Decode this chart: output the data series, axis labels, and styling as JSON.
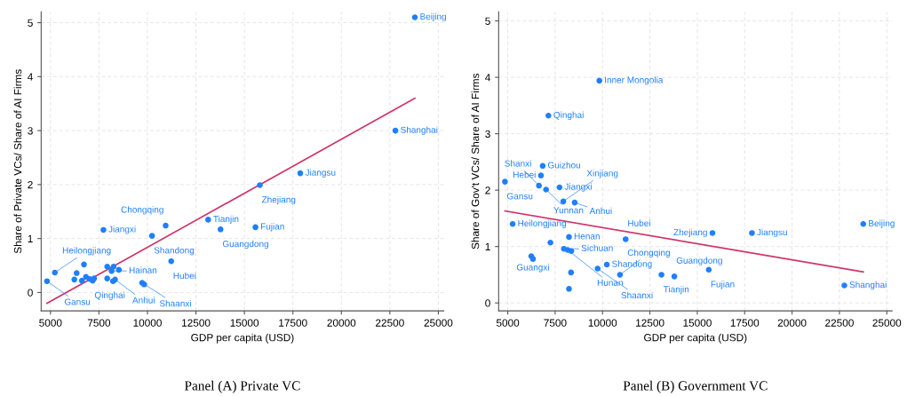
{
  "chart_data": [
    {
      "type": "scatter",
      "title": "Panel (A) Private VC",
      "xlabel": "GDP per capita (USD)",
      "ylabel": "Share of Private VCs/ Share of AI Firms",
      "series": [
        {
          "marker": "circle",
          "color": "#1f7fff",
          "x": [
            4820,
            5225,
            6230,
            6350,
            6725,
            6620,
            6830,
            7025,
            7175,
            7250,
            7730,
            7925,
            7925,
            8150,
            8255,
            8225,
            8330,
            8525,
            9725,
            9830,
            10235,
            10940,
            11225,
            13130,
            13770,
            15570,
            15795,
            17880,
            22785,
            23790
          ],
          "values": [
            0.21,
            0.37,
            0.24,
            0.36,
            0.52,
            0.22,
            0.29,
            0.25,
            0.22,
            0.26,
            1.16,
            0.48,
            0.26,
            0.4,
            0.48,
            0.21,
            0.24,
            0.42,
            0.18,
            0.15,
            1.05,
            1.24,
            0.58,
            1.35,
            1.17,
            1.21,
            1.99,
            2.21,
            3.0,
            5.1
          ]
        },
        {
          "type": "line",
          "color": "#d0356a",
          "x": [
            4820,
            23790
          ],
          "values": [
            -0.2,
            3.6
          ]
        }
      ],
      "annotations": [
        {
          "text": "Gansu",
          "x": 4820,
          "y": 0.21
        },
        {
          "text": "Heilongjiang",
          "x": 5225,
          "y": 0.37
        },
        {
          "text": "Qinghai",
          "x": 7175,
          "y": 0.22
        },
        {
          "text": "Jiangxi",
          "x": 7730,
          "y": 1.16
        },
        {
          "text": "Hainan",
          "x": 8150,
          "y": 0.4
        },
        {
          "text": "Anhui",
          "x": 8330,
          "y": 0.24
        },
        {
          "text": "Shaanxi",
          "x": 9725,
          "y": 0.18
        },
        {
          "text": "Shandong",
          "x": 10235,
          "y": 1.05
        },
        {
          "text": "Chongqing",
          "x": 10940,
          "y": 1.24
        },
        {
          "text": "Hubei",
          "x": 11225,
          "y": 0.58
        },
        {
          "text": "Tianjin",
          "x": 13130,
          "y": 1.35
        },
        {
          "text": "Guangdong",
          "x": 13770,
          "y": 1.17
        },
        {
          "text": "Fujian",
          "x": 15570,
          "y": 1.21
        },
        {
          "text": "Zhejiang",
          "x": 15795,
          "y": 1.99
        },
        {
          "text": "Jiangsu",
          "x": 17880,
          "y": 2.21
        },
        {
          "text": "Shanghai",
          "x": 22785,
          "y": 3.0
        },
        {
          "text": "Beijing",
          "x": 23790,
          "y": 5.1
        }
      ],
      "xlim": [
        4520,
        25280
      ],
      "ylim": [
        -0.34,
        5.2
      ],
      "xticks": [
        5000,
        7500,
        10000,
        12500,
        15000,
        17500,
        20000,
        22500,
        25000
      ],
      "yticks": [
        0,
        1,
        2,
        3,
        4,
        5
      ],
      "grid": true,
      "legend": false
    },
    {
      "type": "scatter",
      "title": "Panel (B) Government VC",
      "xlabel": "GDP per capita (USD)",
      "ylabel": "Share of Gov't VCs/ Share of AI Firms",
      "series": [
        {
          "marker": "circle",
          "color": "#1f7fff",
          "x": [
            4850,
            5257,
            6240,
            6330,
            6842,
            6750,
            6645,
            7020,
            7730,
            7930,
            8530,
            7144,
            9832,
            7250,
            8230,
            7960,
            8160,
            8350,
            8337,
            8230,
            9740,
            10225,
            10920,
            11220,
            13110,
            13790,
            15604,
            15800,
            17884,
            22760,
            23758
          ],
          "values": [
            2.15,
            1.4,
            0.83,
            0.78,
            2.43,
            2.26,
            2.08,
            2.01,
            2.05,
            1.8,
            1.78,
            3.32,
            3.94,
            1.07,
            1.17,
            0.96,
            0.94,
            0.92,
            0.54,
            0.25,
            0.61,
            0.68,
            0.5,
            1.13,
            0.5,
            0.47,
            0.59,
            1.24,
            1.24,
            0.31,
            1.4
          ]
        },
        {
          "type": "line",
          "color": "#d0356a",
          "x": [
            4850,
            23758
          ],
          "values": [
            1.63,
            0.55
          ]
        }
      ],
      "annotations": [
        {
          "text": "Gansu",
          "x": 4850,
          "y": 2.15
        },
        {
          "text": "Heilongjiang",
          "x": 5257,
          "y": 1.4
        },
        {
          "text": "Guangxi",
          "x": 6330,
          "y": 0.78
        },
        {
          "text": "Guizhou",
          "x": 6842,
          "y": 2.43
        },
        {
          "text": "Hebei",
          "x": 6750,
          "y": 2.26
        },
        {
          "text": "Shanxi",
          "x": 6645,
          "y": 2.08
        },
        {
          "text": "Yunnan",
          "x": 7020,
          "y": 2.01
        },
        {
          "text": "Jiangxi",
          "x": 7730,
          "y": 2.05
        },
        {
          "text": "Xinjiang",
          "x": 7930,
          "y": 1.8
        },
        {
          "text": "Anhui",
          "x": 8530,
          "y": 1.78
        },
        {
          "text": "Qinghai",
          "x": 7144,
          "y": 3.32
        },
        {
          "text": "Inner Mongolia",
          "x": 9832,
          "y": 3.94
        },
        {
          "text": "Henan",
          "x": 8230,
          "y": 1.17
        },
        {
          "text": "Sichuan",
          "x": 7960,
          "y": 0.96
        },
        {
          "text": "Hunan",
          "x": 8160,
          "y": 0.94
        },
        {
          "text": "Shaanxi",
          "x": 9740,
          "y": 0.61
        },
        {
          "text": "Shandong",
          "x": 10225,
          "y": 0.68
        },
        {
          "text": "Chongqing",
          "x": 10920,
          "y": 0.5
        },
        {
          "text": "Hubei",
          "x": 11220,
          "y": 1.13
        },
        {
          "text": "Tianjin",
          "x": 13110,
          "y": 0.5
        },
        {
          "text": "Guangdong",
          "x": 13790,
          "y": 0.47
        },
        {
          "text": "Fujian",
          "x": 15604,
          "y": 0.59
        },
        {
          "text": "Zhejiang",
          "x": 15800,
          "y": 1.24
        },
        {
          "text": "Jiangsu",
          "x": 17884,
          "y": 1.24
        },
        {
          "text": "Shanghai",
          "x": 22760,
          "y": 0.31
        },
        {
          "text": "Beijing",
          "x": 23758,
          "y": 1.4
        }
      ],
      "xlim": [
        4520,
        25280
      ],
      "ylim": [
        -0.14,
        5.16
      ],
      "xticks": [
        5000,
        7500,
        10000,
        12500,
        15000,
        17500,
        20000,
        22500,
        25000
      ],
      "yticks": [
        0,
        1,
        2,
        3,
        4,
        5
      ],
      "grid": true,
      "legend": false
    }
  ]
}
